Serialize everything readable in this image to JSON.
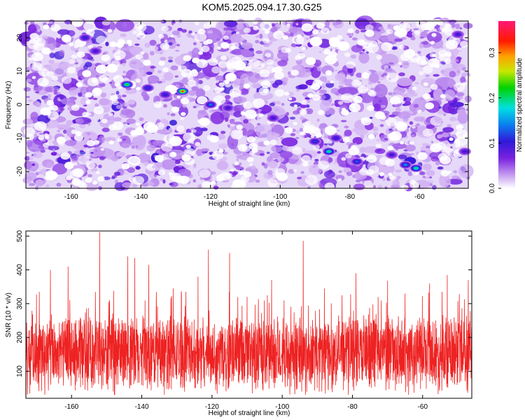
{
  "title": "KOM5.2025.094.17.30.G25",
  "chart_data": [
    {
      "type": "heatmap",
      "xlabel": "Height of straight line (km)",
      "ylabel": "Frequency (Hz)",
      "xlim": [
        -173,
        -46
      ],
      "ylim": [
        -25,
        25
      ],
      "xticks": [
        -160,
        -140,
        -120,
        -100,
        -80,
        -60
      ],
      "yticks": [
        -20,
        -10,
        0,
        10,
        20
      ],
      "colorbar": {
        "label": "Normalized spectral amplitude",
        "range": [
          0.0,
          0.37
        ],
        "ticks": [
          0.0,
          0.1,
          0.2,
          0.3
        ],
        "colormap": "rainbow (white-violet-blue-cyan-green-yellow-red-magenta)"
      },
      "hotspots": [
        {
          "x": -144,
          "y": 6,
          "value": 0.23
        },
        {
          "x": -128,
          "y": 4,
          "value": 0.32
        },
        {
          "x": -120,
          "y": 0,
          "value": 0.14
        },
        {
          "x": -116,
          "y": -1,
          "value": 0.12
        },
        {
          "x": -138,
          "y": 5,
          "value": 0.12
        },
        {
          "x": -133,
          "y": 3,
          "value": 0.11
        },
        {
          "x": -156,
          "y": 20,
          "value": 0.11
        },
        {
          "x": -153,
          "y": 16,
          "value": 0.1
        },
        {
          "x": -86,
          "y": -14,
          "value": 0.2
        },
        {
          "x": -90,
          "y": -11,
          "value": 0.12
        },
        {
          "x": -84,
          "y": -10,
          "value": 0.11
        },
        {
          "x": -78,
          "y": -17,
          "value": 0.13
        },
        {
          "x": -61,
          "y": -19,
          "value": 0.2
        },
        {
          "x": -64,
          "y": -18,
          "value": 0.15
        },
        {
          "x": -68,
          "y": -15,
          "value": 0.1
        },
        {
          "x": -102,
          "y": -4,
          "value": 0.1
        },
        {
          "x": -115,
          "y": -1,
          "value": 0.1
        },
        {
          "x": -49,
          "y": 21,
          "value": 0.1
        },
        {
          "x": -47,
          "y": -14,
          "value": 0.1
        }
      ],
      "grid": false
    },
    {
      "type": "line",
      "xlabel": "Height of straight line (km)",
      "ylabel": "SNR (10 * v/v)",
      "xlim": [
        -173,
        -46
      ],
      "ylim": [
        20,
        515
      ],
      "xticks": [
        -160,
        -140,
        -120,
        -100,
        -80,
        -60
      ],
      "yticks": [
        100,
        200,
        300,
        400,
        500
      ],
      "series_color": "#ee2222",
      "baseline_approx": 150,
      "peaks": [
        {
          "x": -152,
          "y": 512
        },
        {
          "x": -94,
          "y": 486
        },
        {
          "x": -121,
          "y": 460
        },
        {
          "x": -115,
          "y": 450
        },
        {
          "x": -144,
          "y": 440
        },
        {
          "x": -142,
          "y": 435
        },
        {
          "x": -138,
          "y": 415
        },
        {
          "x": -161,
          "y": 410
        },
        {
          "x": -166,
          "y": 400
        },
        {
          "x": -79,
          "y": 390
        },
        {
          "x": -53,
          "y": 385
        },
        {
          "x": -124,
          "y": 380
        },
        {
          "x": -103,
          "y": 370
        },
        {
          "x": -70,
          "y": 368
        },
        {
          "x": -58,
          "y": 360
        },
        {
          "x": -47,
          "y": 370
        },
        {
          "x": -148,
          "y": 338
        },
        {
          "x": -131,
          "y": 345
        },
        {
          "x": -88,
          "y": 345
        },
        {
          "x": -110,
          "y": 320
        },
        {
          "x": -65,
          "y": 330
        }
      ],
      "grid": false
    }
  ]
}
